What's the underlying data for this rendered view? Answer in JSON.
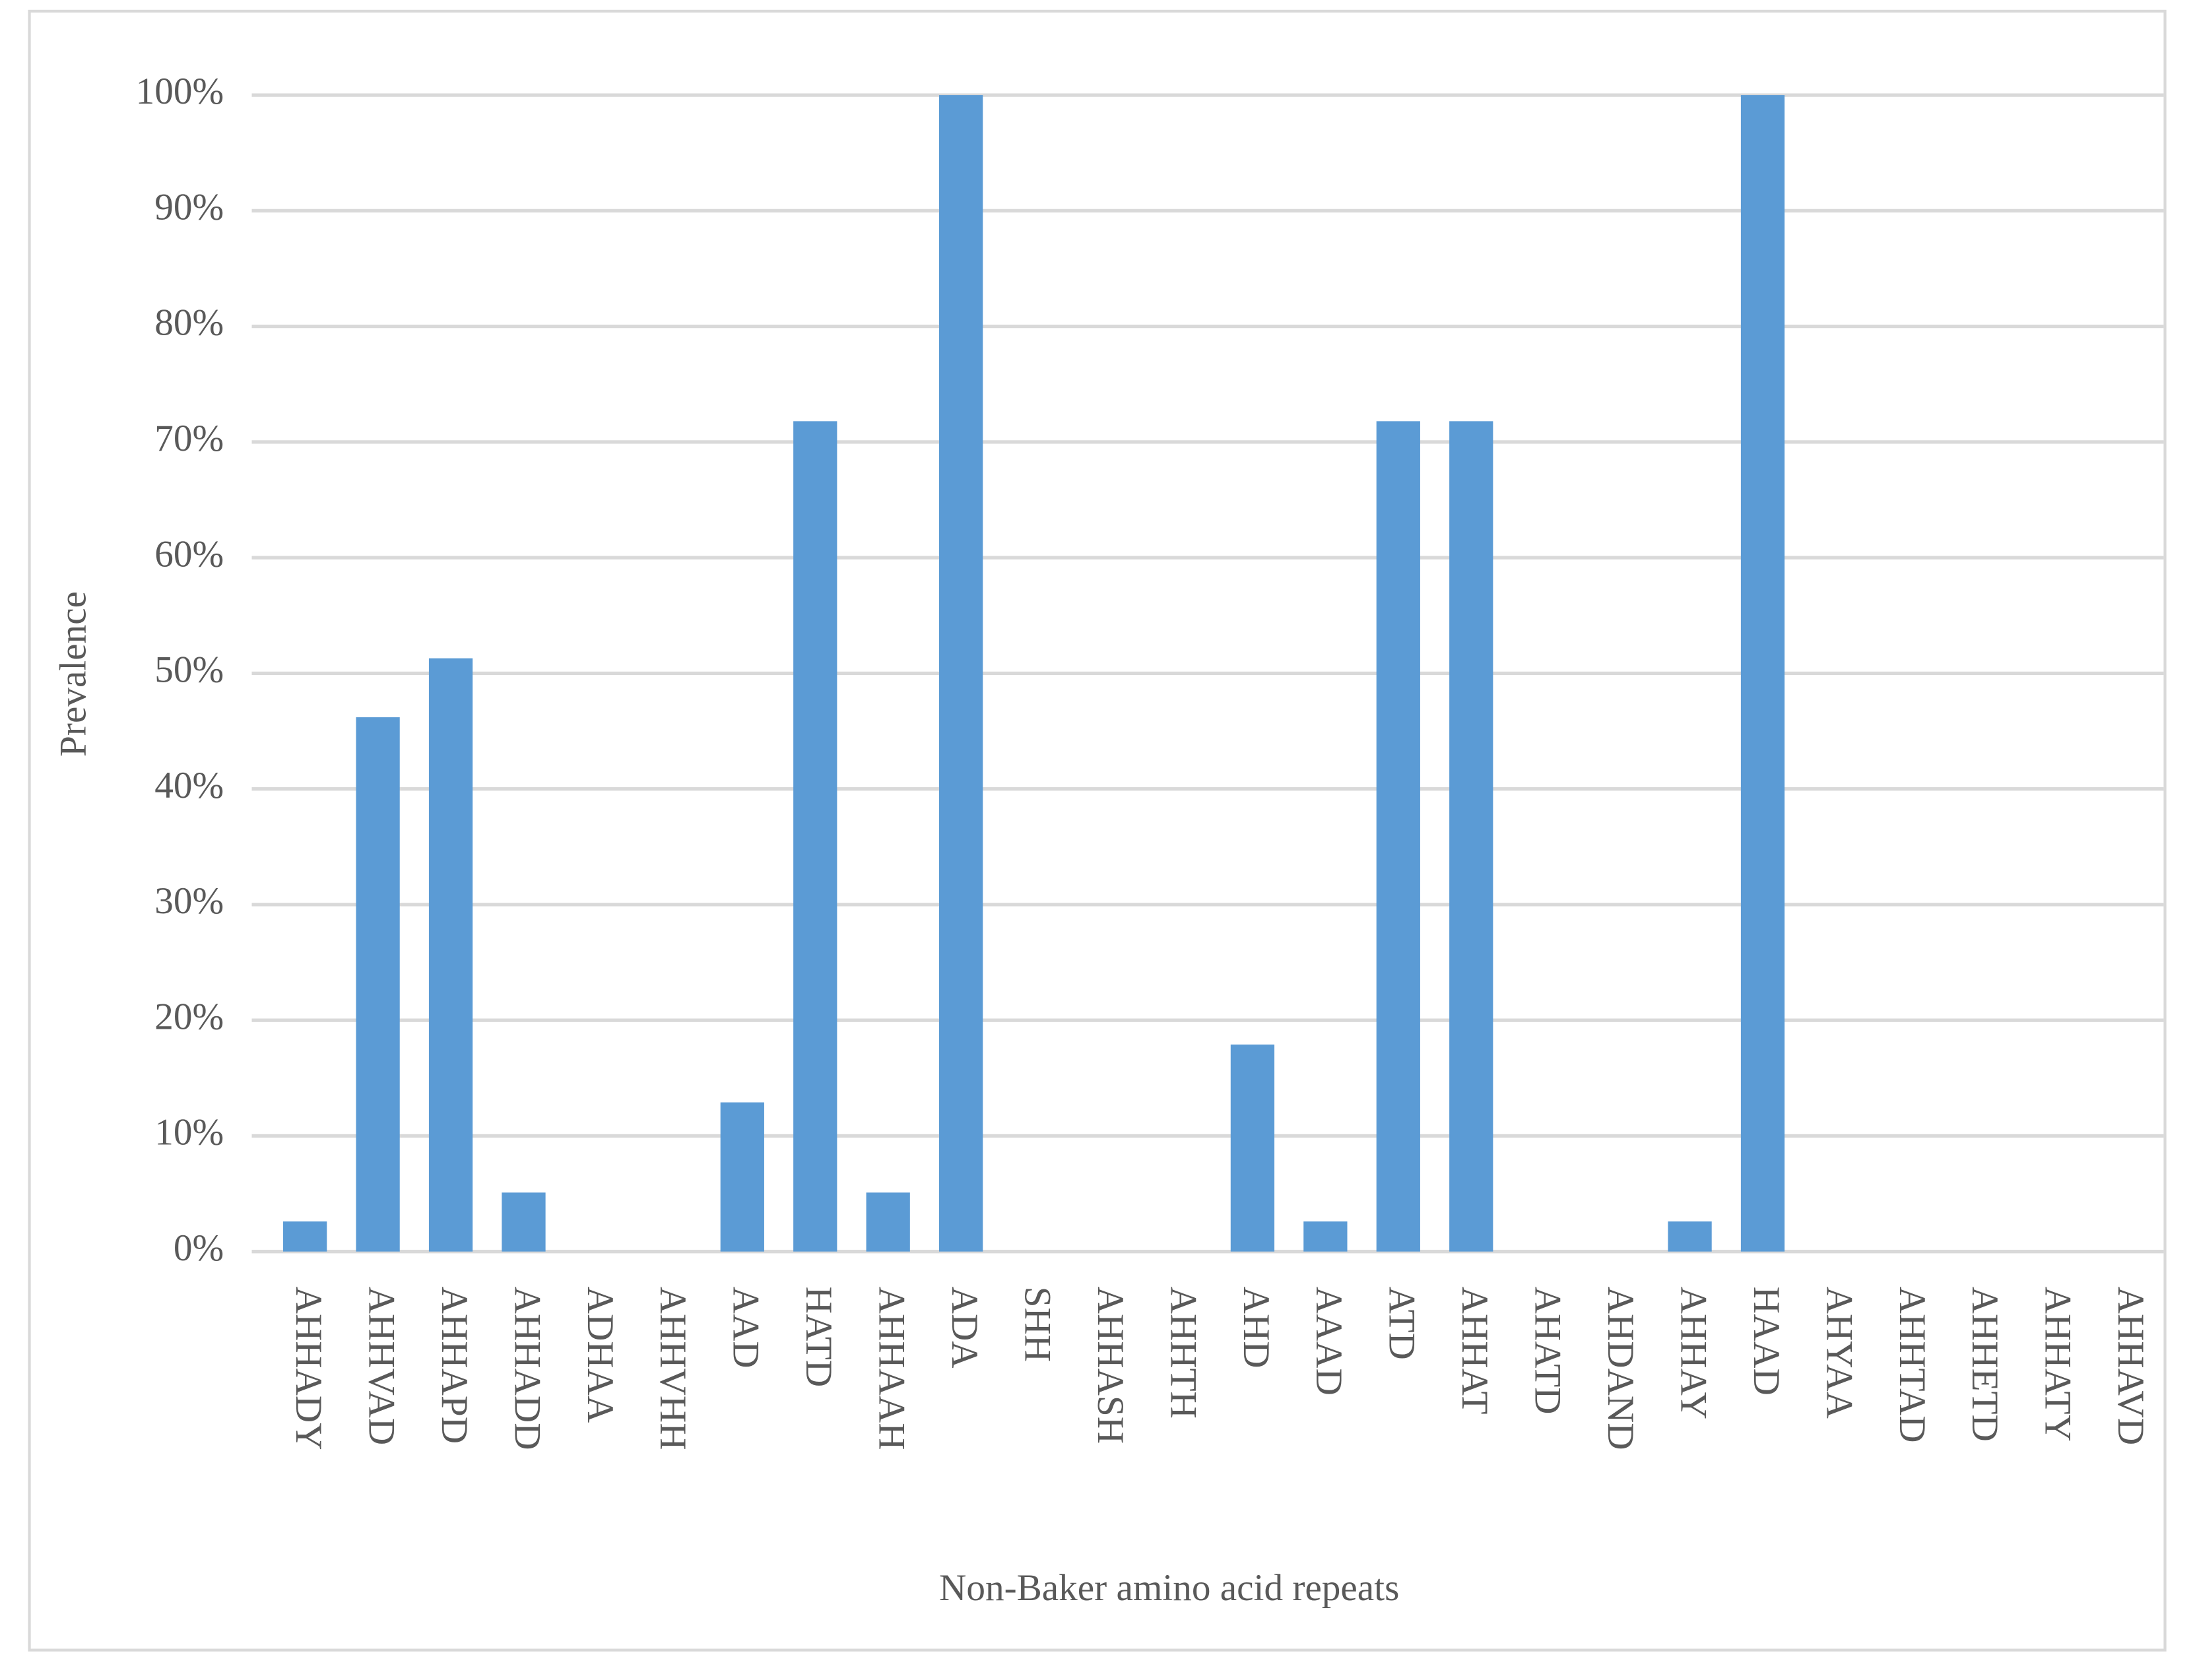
{
  "chart_data": {
    "type": "bar",
    "x_label": "Non-Baker amino acid repeats",
    "y_label": "Prevalence",
    "categories": [
      "AHHADY",
      "AHHVAD",
      "AHHAPD",
      "AHHADD",
      "ADHAA",
      "AHHVHH",
      "AAD",
      "HATD",
      "AHHAAH",
      "ADA",
      "SHH",
      "AHHASH",
      "AHHTH",
      "AHD",
      "AAAD",
      "ATD",
      "AHHAT",
      "AHATD",
      "AHDAND",
      "AHHAY",
      "HAAD",
      "AHYAA",
      "AHHTAD",
      "AHHETD",
      "AHHATY",
      "AHHAVD"
    ],
    "values": [
      2.6,
      46.2,
      51.3,
      5.1,
      0,
      0,
      12.9,
      71.8,
      5.1,
      100,
      0,
      0,
      0,
      17.9,
      2.6,
      71.8,
      71.8,
      0,
      0,
      2.6,
      100,
      0,
      0,
      0,
      0,
      0
    ],
    "color": "#5b9bd5",
    "ylim": [
      0,
      100
    ],
    "yticks": [
      {
        "value": 0,
        "label": "0%"
      },
      {
        "value": 10,
        "label": "10%"
      },
      {
        "value": 20,
        "label": "20%"
      },
      {
        "value": 30,
        "label": "30%"
      },
      {
        "value": 40,
        "label": "40%"
      },
      {
        "value": 50,
        "label": "50%"
      },
      {
        "value": 60,
        "label": "60%"
      },
      {
        "value": 70,
        "label": "70%"
      },
      {
        "value": 80,
        "label": "80%"
      },
      {
        "value": 90,
        "label": "90%"
      },
      {
        "value": 100,
        "label": "100%"
      }
    ],
    "grid": true
  }
}
